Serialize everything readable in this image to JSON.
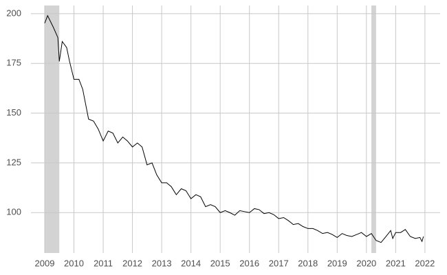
{
  "chart_data": {
    "type": "line",
    "x": [
      2009,
      2009.1,
      2009.3,
      2009.45,
      2009.5,
      2009.6,
      2009.75,
      2009.85,
      2010,
      2010.17,
      2010.3,
      2010.5,
      2010.67,
      2010.83,
      2011,
      2011.17,
      2011.33,
      2011.5,
      2011.67,
      2011.83,
      2012,
      2012.17,
      2012.33,
      2012.5,
      2012.67,
      2012.83,
      2013,
      2013.17,
      2013.33,
      2013.5,
      2013.67,
      2013.83,
      2014,
      2014.17,
      2014.33,
      2014.5,
      2014.67,
      2014.83,
      2015,
      2015.17,
      2015.33,
      2015.5,
      2015.67,
      2015.83,
      2016,
      2016.17,
      2016.33,
      2016.5,
      2016.67,
      2016.83,
      2017,
      2017.17,
      2017.33,
      2017.5,
      2017.67,
      2017.83,
      2018,
      2018.17,
      2018.33,
      2018.5,
      2018.67,
      2018.83,
      2019,
      2019.17,
      2019.33,
      2019.5,
      2019.67,
      2019.83,
      2020,
      2020.17,
      2020.33,
      2020.5,
      2020.67,
      2020.83,
      2020.9,
      2021,
      2021.17,
      2021.33,
      2021.5,
      2021.67,
      2021.83,
      2021.9,
      2021.95
    ],
    "series": [
      {
        "color": "#000000",
        "values": [
          195.2,
          199,
          193,
          188,
          176,
          186,
          183,
          176,
          167,
          167,
          162,
          147,
          146,
          142,
          136,
          141,
          140,
          135,
          138,
          136,
          133,
          135,
          133,
          124,
          125,
          119,
          115,
          115,
          113,
          109,
          112,
          111,
          107,
          109,
          108,
          103,
          104,
          103,
          100,
          101,
          100,
          98.7,
          101,
          100.5,
          100,
          102,
          101.5,
          99.5,
          100,
          99,
          97,
          97.5,
          96,
          94,
          94.5,
          93,
          92,
          92,
          91,
          89.5,
          90,
          89,
          87.5,
          89.5,
          88.5,
          88,
          89,
          90,
          88,
          89.5,
          86,
          85,
          88,
          91,
          87,
          90,
          90,
          91.5,
          88,
          87,
          87.5,
          85.5,
          88
        ]
      }
    ],
    "recessions": [
      [
        2009,
        2009.5
      ],
      [
        2020.17,
        2020.33
      ]
    ],
    "recession_color": "#d3d3d3",
    "xlim": [
      2008.53,
      2022.52
    ],
    "xticks": [
      2009,
      2010,
      2011,
      2012,
      2013,
      2014,
      2015,
      2016,
      2017,
      2018,
      2019,
      2020,
      2021,
      2022
    ],
    "ylim": [
      79.7,
      204.1
    ],
    "yticks": [
      100,
      125,
      150,
      175,
      200
    ],
    "grid": true
  }
}
